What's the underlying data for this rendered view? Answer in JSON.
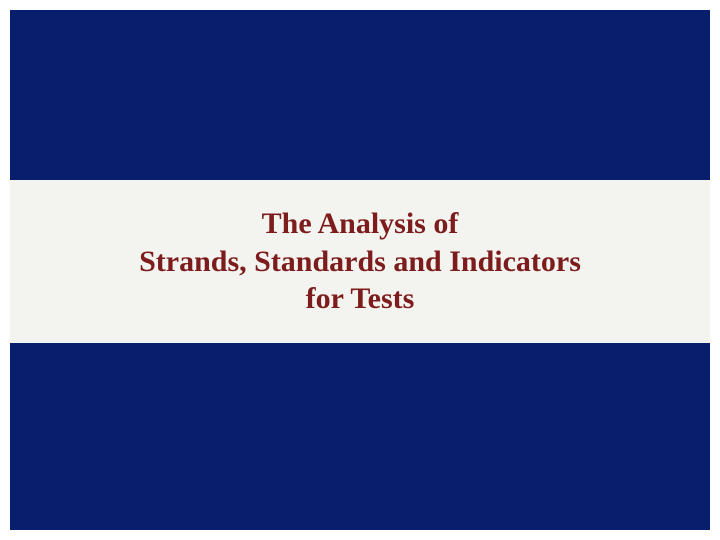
{
  "slide": {
    "title_line1": "The Analysis of",
    "title_line2": "Strands, Standards and Indicators",
    "title_line3": "for Tests",
    "colors": {
      "outer_background": "#ffffff",
      "band_color": "#0a1e6e",
      "title_band_background": "#f3f3ef",
      "title_text_color": "#7d1c1c"
    },
    "layout": {
      "top_band_height": 170,
      "title_band_height": 160,
      "title_fontsize": 30,
      "title_font_weight": "bold",
      "frame_padding": 10
    }
  }
}
